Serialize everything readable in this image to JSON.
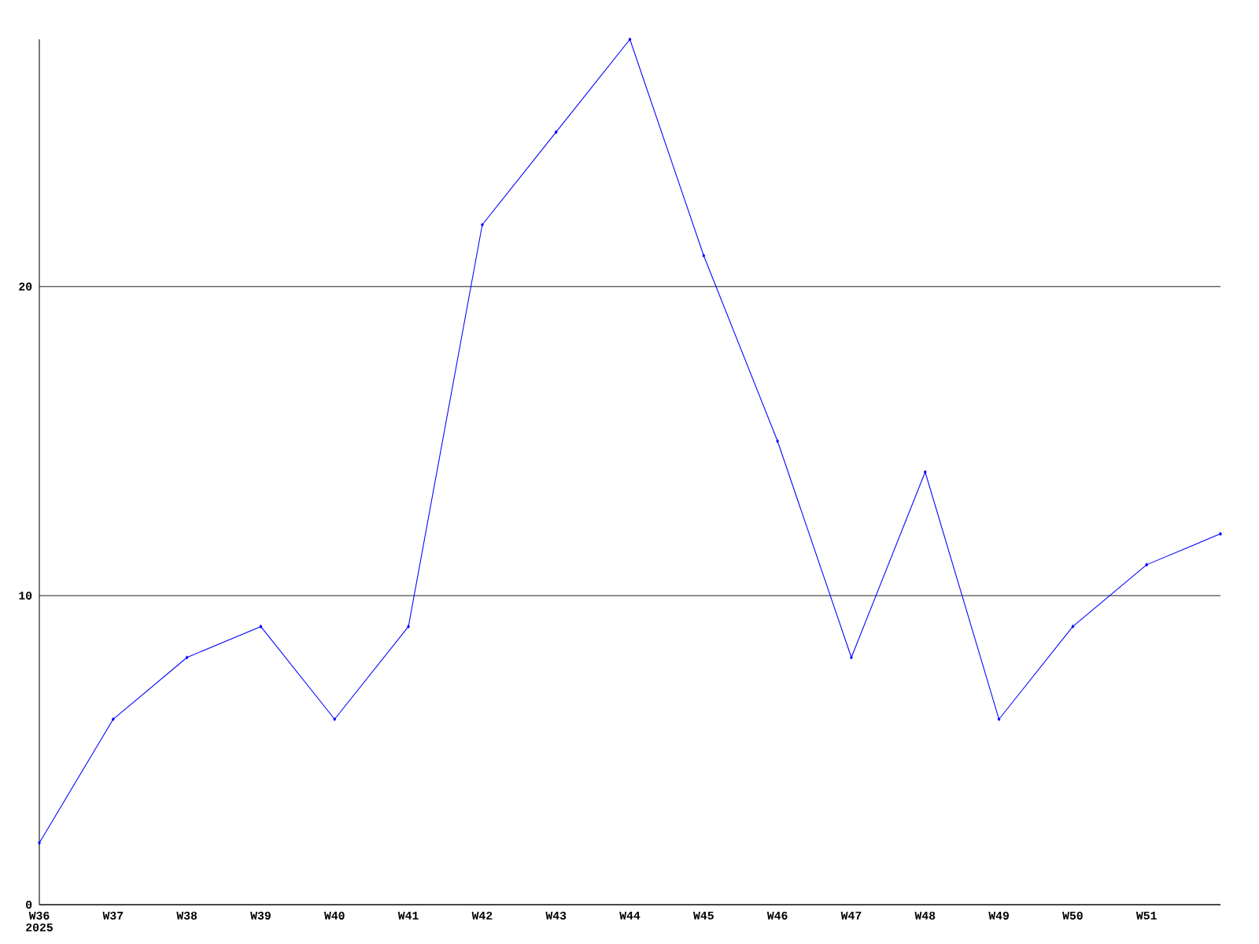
{
  "chart_data": {
    "type": "line",
    "categories": [
      "W36",
      "W37",
      "W38",
      "W39",
      "W40",
      "W41",
      "W42",
      "W43",
      "W44",
      "W45",
      "W46",
      "W47",
      "W48",
      "W49",
      "W50",
      "W51",
      null
    ],
    "values": [
      2,
      6,
      8,
      9,
      6,
      9,
      22,
      25,
      28,
      21,
      15,
      8,
      14,
      6,
      9,
      11,
      12
    ],
    "color": "#0000ff",
    "marker": "diamond",
    "ylim": [
      0,
      28
    ],
    "yticks": [
      0,
      10,
      20
    ],
    "grid": "y",
    "annotations": [
      "2025"
    ]
  }
}
